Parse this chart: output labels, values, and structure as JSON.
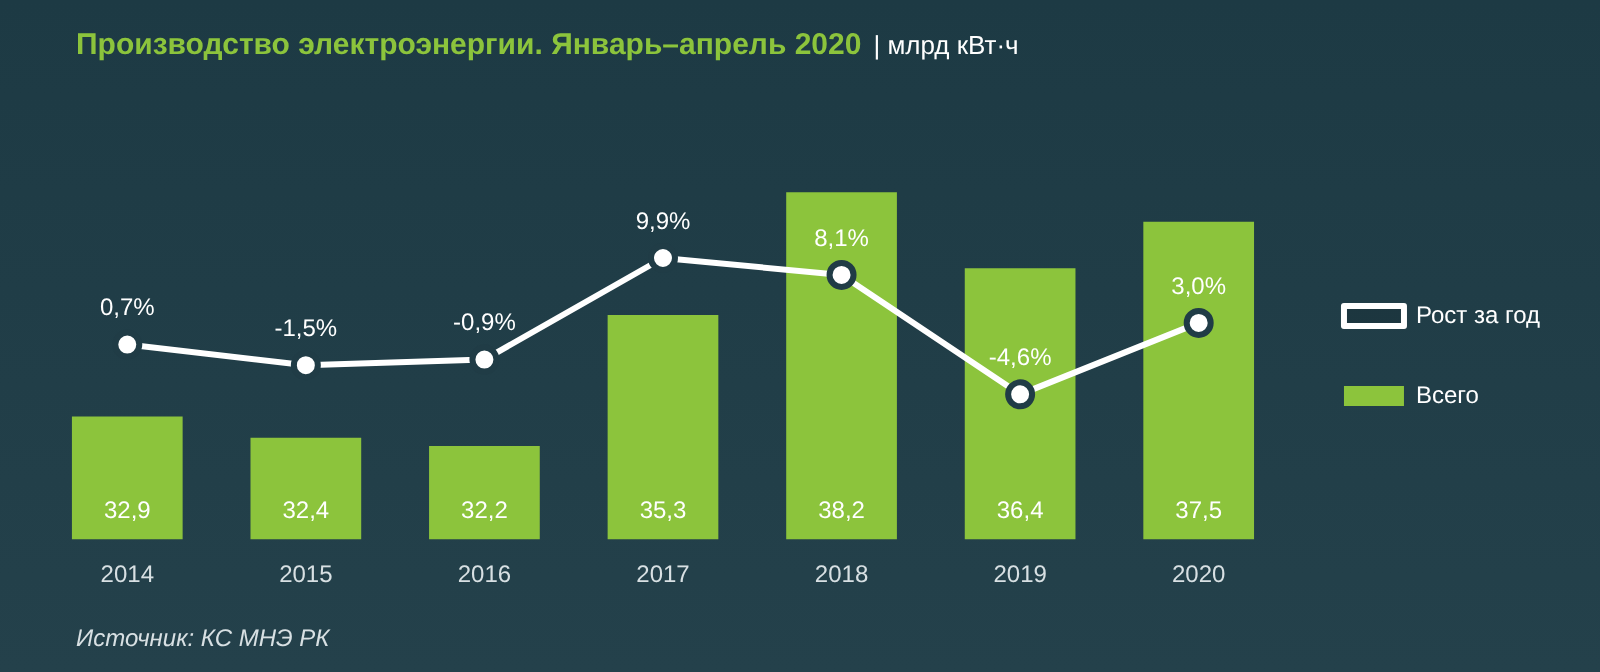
{
  "chart_data": {
    "type": "bar",
    "title": "Производство электроэнергии. Январь–апрель 2020",
    "subtitle": "| млрд кВт·ч",
    "categories": [
      "2014",
      "2015",
      "2016",
      "2017",
      "2018",
      "2019",
      "2020"
    ],
    "series": [
      {
        "name": "Всего",
        "color": "#8cc43c",
        "values": [
          32.9,
          32.4,
          32.2,
          35.3,
          38.2,
          36.4,
          37.5
        ],
        "value_labels": [
          "32,9",
          "32,4",
          "32,2",
          "35,3",
          "38,2",
          "36,4",
          "37,5"
        ]
      },
      {
        "name": "Рост за год",
        "type": "line",
        "axis": "y2",
        "color": "#ffffff",
        "values": [
          0.7,
          -1.5,
          -0.9,
          9.9,
          8.1,
          -4.6,
          3.0
        ],
        "value_labels": [
          "0,7%",
          "-1,5%",
          "-0,9%",
          "9,9%",
          "8,1%",
          "-4,6%",
          "3,0%"
        ]
      }
    ],
    "marker": "circle",
    "legend": "right",
    "tick_labels": "x",
    "annotations": [
      "Источник: КС МНЭ РК"
    ]
  }
}
